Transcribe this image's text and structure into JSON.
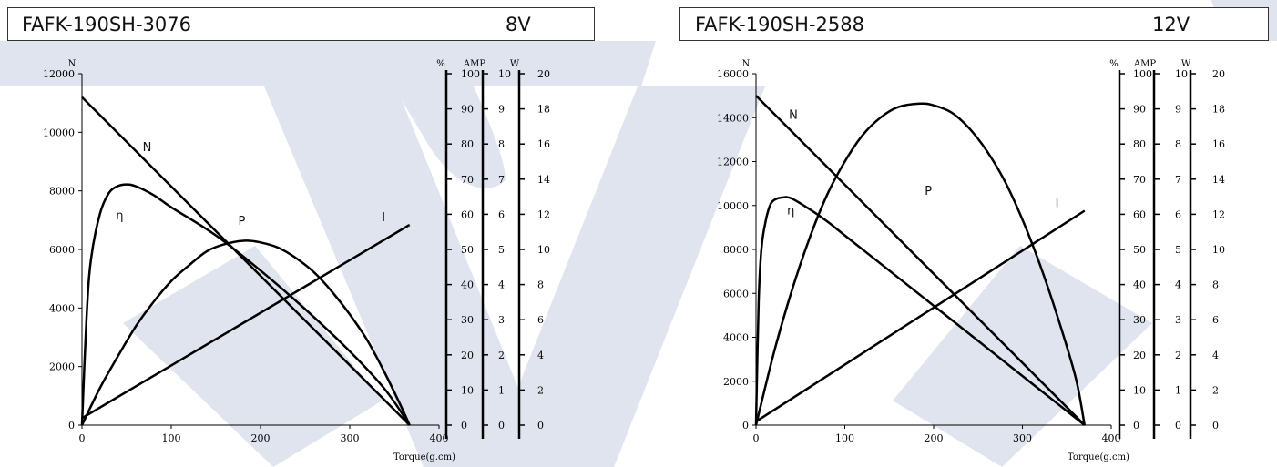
{
  "colors": {
    "curve": "#000000",
    "watermark": "#dfe4ee",
    "background": "#ffffff"
  },
  "chart_data": [
    {
      "type": "line",
      "title": "FAFK-190SH-3076",
      "voltage": "8V",
      "xlabel": "Torque(g.cm)",
      "x_ticks": [
        "0",
        "100",
        "200",
        "300",
        "400"
      ],
      "xlim": [
        0,
        400
      ],
      "y_left": {
        "unit": "N",
        "lim": [
          0,
          12000
        ],
        "ticks": [
          "0",
          "2000",
          "4000",
          "6000",
          "8000",
          "10000",
          "12000"
        ]
      },
      "y_right": [
        {
          "unit": "%",
          "lim": [
            0,
            100
          ],
          "ticks": [
            "0",
            "10",
            "20",
            "30",
            "40",
            "50",
            "60",
            "70",
            "80",
            "90",
            "100"
          ]
        },
        {
          "unit": "AMP",
          "lim": [
            0,
            10
          ],
          "ticks": [
            "0",
            "1",
            "2",
            "3",
            "4",
            "5",
            "6",
            "7",
            "8",
            "9",
            "10"
          ]
        },
        {
          "unit": "W",
          "lim": [
            0,
            20
          ],
          "ticks": [
            "0",
            "2",
            "4",
            "6",
            "8",
            "10",
            "12",
            "14",
            "16",
            "18",
            "20"
          ]
        }
      ],
      "series": [
        {
          "name": "N",
          "axis": "N",
          "x": [
            0,
            367
          ],
          "y": [
            11200,
            0
          ]
        },
        {
          "name": "η",
          "axis": "%",
          "x": [
            0,
            5,
            10,
            20,
            30,
            40,
            50,
            60,
            80,
            100,
            150,
            200,
            250,
            300,
            340,
            367
          ],
          "y": [
            0,
            30,
            47,
            60,
            66,
            68,
            68.5,
            68,
            65.5,
            62,
            54,
            44,
            33,
            21,
            10,
            0
          ]
        },
        {
          "name": "P",
          "axis": "W",
          "x": [
            0,
            20,
            40,
            60,
            80,
            100,
            120,
            140,
            160,
            183,
            200,
            220,
            240,
            260,
            280,
            300,
            320,
            340,
            360,
            367
          ],
          "y": [
            0,
            2.1,
            3.9,
            5.6,
            7.0,
            8.2,
            9.1,
            9.9,
            10.3,
            10.5,
            10.4,
            10.1,
            9.5,
            8.7,
            7.6,
            6.3,
            4.8,
            2.9,
            0.8,
            0
          ]
        },
        {
          "name": "I",
          "axis": "AMP",
          "x": [
            0,
            367
          ],
          "y": [
            0.2,
            5.7
          ]
        }
      ],
      "curve_labels": [
        {
          "name": "N",
          "x": 68,
          "axis": "N",
          "y": 9350
        },
        {
          "name": "η",
          "x": 38,
          "axis": "%",
          "y": 58.5
        },
        {
          "name": "P",
          "x": 175,
          "axis": "W",
          "y": 11.4
        },
        {
          "name": "I",
          "x": 336,
          "axis": "AMP",
          "y": 5.8
        }
      ]
    },
    {
      "type": "line",
      "title": "FAFK-190SH-2588",
      "voltage": "12V",
      "xlabel": "Torque(g.cm)",
      "x_ticks": [
        "0",
        "100",
        "200",
        "300",
        "400"
      ],
      "xlim": [
        0,
        400
      ],
      "y_left": {
        "unit": "N",
        "lim": [
          0,
          16000
        ],
        "ticks": [
          "0",
          "2000",
          "4000",
          "6000",
          "8000",
          "10000",
          "12000",
          "14000",
          "16000"
        ]
      },
      "y_right": [
        {
          "unit": "%",
          "lim": [
            0,
            100
          ],
          "ticks": [
            "0",
            "10",
            "20",
            "30",
            "40",
            "50",
            "60",
            "70",
            "80",
            "90",
            "100"
          ]
        },
        {
          "unit": "AMP",
          "lim": [
            0,
            10
          ],
          "ticks": [
            "0",
            "1",
            "2",
            "3",
            "4",
            "5",
            "6",
            "7",
            "8",
            "9",
            "10"
          ]
        },
        {
          "unit": "W",
          "lim": [
            0,
            20
          ],
          "ticks": [
            "0",
            "2",
            "4",
            "6",
            "8",
            "10",
            "12",
            "14",
            "16",
            "18",
            "20"
          ]
        }
      ],
      "series": [
        {
          "name": "N",
          "axis": "N",
          "x": [
            0,
            370
          ],
          "y": [
            15000,
            0
          ]
        },
        {
          "name": "η",
          "axis": "%",
          "x": [
            0,
            3,
            6,
            10,
            15,
            20,
            30,
            40,
            60,
            80,
            100,
            150,
            200,
            250,
            300,
            340,
            370
          ],
          "y": [
            0,
            35,
            50,
            57,
            62,
            64,
            64.8,
            64.5,
            61.5,
            58,
            54,
            44,
            34,
            24,
            14,
            6,
            0
          ]
        },
        {
          "name": "P",
          "axis": "W",
          "x": [
            0,
            20,
            40,
            60,
            80,
            100,
            120,
            140,
            160,
            185,
            200,
            220,
            240,
            260,
            280,
            300,
            320,
            340,
            360,
            370
          ],
          "y": [
            0,
            4.1,
            7.6,
            10.6,
            13.1,
            15.0,
            16.5,
            17.5,
            18.1,
            18.3,
            18.2,
            17.8,
            16.9,
            15.6,
            13.9,
            11.7,
            9.1,
            6.1,
            2.7,
            0
          ]
        },
        {
          "name": "I",
          "axis": "AMP",
          "x": [
            0,
            370
          ],
          "y": [
            0.1,
            6.1
          ]
        }
      ],
      "curve_labels": [
        {
          "name": "N",
          "x": 37,
          "axis": "N",
          "y": 13950
        },
        {
          "name": "η",
          "x": 35,
          "axis": "%",
          "y": 60
        },
        {
          "name": "P",
          "x": 190,
          "axis": "W",
          "y": 13.1
        },
        {
          "name": "I",
          "x": 337,
          "axis": "AMP",
          "y": 6.2
        }
      ]
    }
  ]
}
